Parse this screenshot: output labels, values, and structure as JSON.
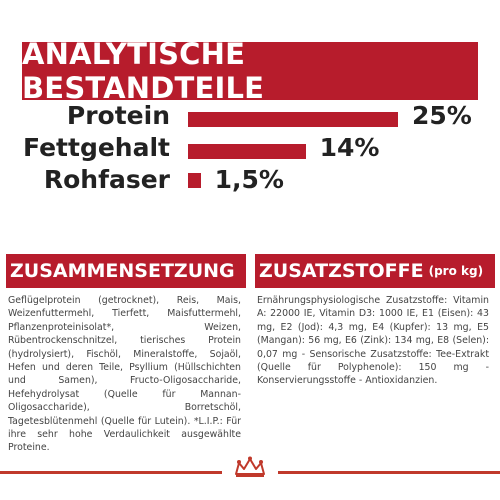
{
  "banner": {
    "title": "ANALYTISCHE BESTANDTEILE"
  },
  "metrics": [
    {
      "label": "Protein",
      "value_text": "25%",
      "value": 25
    },
    {
      "label": "Fettgehalt",
      "value_text": "14%",
      "value": 14
    },
    {
      "label": "Rohfaser",
      "value_text": "1,5%",
      "value": 1.5
    }
  ],
  "composition": {
    "heading": "ZUSAMMENSETZUNG",
    "text": "Geflügelprotein (getrocknet), Reis, Mais, Weizenfuttermehl, Tierfett, Maisfuttermehl, Pflanzenproteinisolat*, Weizen, Rübentrockenschnitzel, tierisches Protein (hydrolysiert), Fischöl, Mineralstoffe, Sojaöl, Hefen und deren Teile, Psyllium (Hüllschichten und Samen), Fructo-Oligosaccharide, Hefehydrolysat (Quelle für Mannan-Oligosaccharide), Borretschöl, Tagetesblütenmehl (Quelle für Lutein). *L.I.P.: Für ihre sehr hohe Verdaulichkeit ausgewählte Proteine."
  },
  "additives": {
    "heading": "ZUSATZSTOFFE",
    "heading_suffix": "(pro kg)",
    "text": "Ernährungsphysiologische Zusatzstoffe: Vitamin A: 22000 IE, Vitamin D3: 1000 IE, E1 (Eisen): 43 mg, E2 (Jod): 4,3 mg, E4 (Kupfer): 13 mg, E5 (Mangan): 56 mg, E6 (Zink): 134 mg, E8 (Selen): 0,07 mg - Sensorische Zusatzstoffe: Tee-Extrakt (Quelle für Polyphenole): 150 mg - Konservierungsstoffe - Antioxidanzien."
  },
  "colors": {
    "accent": "#b71c2c"
  },
  "footer": {
    "icon": "crown-icon"
  }
}
